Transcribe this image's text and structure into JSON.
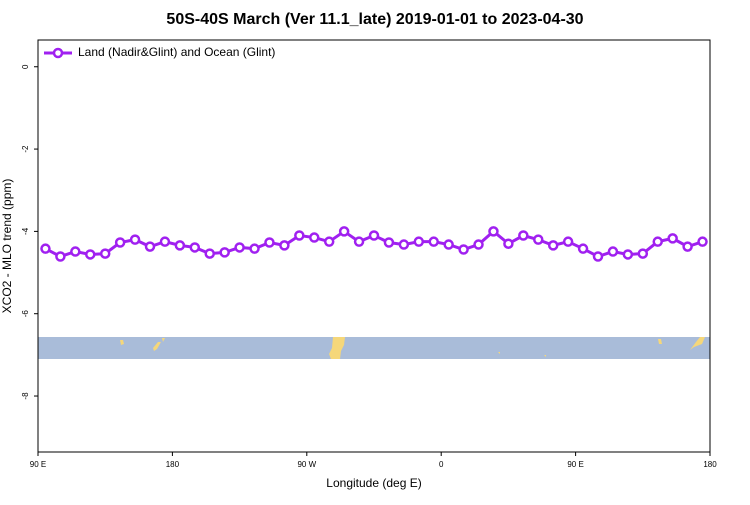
{
  "chart_data": {
    "type": "line",
    "title": "50S-40S March (Ver 11.1_late)   2019-01-01 to 2023-04-30",
    "xlabel": "Longitude (deg E)",
    "ylabel": "XCO2 - MLO trend (ppm)",
    "x": [
      95,
      105,
      115,
      125,
      135,
      145,
      155,
      165,
      175,
      185,
      195,
      205,
      215,
      225,
      235,
      245,
      255,
      265,
      275,
      285,
      295,
      305,
      315,
      325,
      335,
      345,
      355,
      365,
      375,
      385,
      395,
      405,
      415,
      425,
      435,
      445,
      455,
      465,
      475,
      485,
      495,
      505,
      515,
      525,
      535
    ],
    "series": [
      {
        "name": "Land (Nadir&Glint) and Ocean (Glint)",
        "color": "#a020f0",
        "values": [
          -4.42,
          -4.61,
          -4.49,
          -4.56,
          -4.54,
          -4.27,
          -4.2,
          -4.37,
          -4.25,
          -4.34,
          -4.39,
          -4.54,
          -4.51,
          -4.39,
          -4.42,
          -4.27,
          -4.34,
          -4.1,
          -4.15,
          -4.25,
          -4.0,
          -4.25,
          -4.1,
          -4.27,
          -4.32,
          -4.25,
          -4.25,
          -4.32,
          -4.44,
          -4.32,
          -4.0,
          -4.3,
          -4.1,
          -4.2,
          -4.34,
          -4.25,
          -4.42,
          -4.61,
          -4.49,
          -4.56,
          -4.54,
          -4.25,
          -4.17,
          -4.37,
          -4.25
        ]
      }
    ],
    "xlim": [
      90,
      540
    ],
    "xticks": [
      {
        "value": 90,
        "label": "90 E"
      },
      180,
      {
        "value": 270,
        "label": "90 W"
      },
      {
        "value": 360,
        "label": "0"
      },
      {
        "value": 450,
        "label": "90 E"
      },
      {
        "value": 540,
        "label": "180"
      }
    ],
    "ylim": [
      -9.36,
      0.65
    ],
    "yticks": [
      0,
      -2,
      -4,
      -6,
      -8
    ],
    "legend": "top-left"
  }
}
